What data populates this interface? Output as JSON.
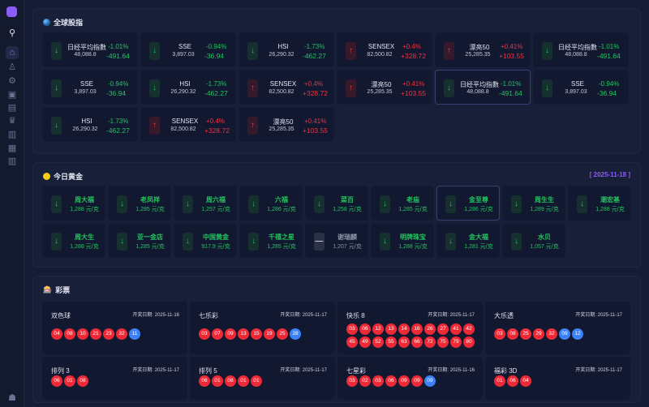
{
  "sidebar": {
    "items": [
      "logo",
      "search-icon",
      "home-icon",
      "user-icon",
      "gear-icon",
      "gift-icon",
      "building-icon",
      "crown-icon",
      "book-icon",
      "report-icon",
      "book-open-icon"
    ]
  },
  "indices": {
    "title": "全球股指",
    "items": [
      {
        "name": "日经平均指數",
        "value": "48,088.8",
        "pct": "-1.01%",
        "chg": "-491.64",
        "dir": "down"
      },
      {
        "name": "SSE",
        "value": "3,897.03",
        "pct": "-0.94%",
        "chg": "-36.94",
        "dir": "down"
      },
      {
        "name": "HSI",
        "value": "26,290.32",
        "pct": "-1.73%",
        "chg": "-462.27",
        "dir": "down"
      },
      {
        "name": "SENSEX",
        "value": "82,500.82",
        "pct": "+0.4%",
        "chg": "+328.72",
        "dir": "up"
      },
      {
        "name": "漂亮50",
        "value": "25,285.35",
        "pct": "+0.41%",
        "chg": "+103.55",
        "dir": "up"
      },
      {
        "name": "日经平均指數",
        "value": "48,088.8",
        "pct": "-1.01%",
        "chg": "-491.64",
        "dir": "down"
      },
      {
        "name": "SSE",
        "value": "3,897.03",
        "pct": "-0.94%",
        "chg": "-36.94",
        "dir": "down"
      },
      {
        "name": "HSI",
        "value": "26,290.32",
        "pct": "-1.73%",
        "chg": "-462.27",
        "dir": "down"
      },
      {
        "name": "SENSEX",
        "value": "82,500.82",
        "pct": "+0.4%",
        "chg": "+328.72",
        "dir": "up"
      },
      {
        "name": "漂亮50",
        "value": "25,285.35",
        "pct": "+0.41%",
        "chg": "+103.55",
        "dir": "up"
      },
      {
        "name": "日经平均指數",
        "value": "48,088.8",
        "pct": "-1.01%",
        "chg": "-491.64",
        "dir": "down"
      },
      {
        "name": "SSE",
        "value": "3,897.03",
        "pct": "-0.94%",
        "chg": "-36.94",
        "dir": "down"
      },
      {
        "name": "HSI",
        "value": "26,290.32",
        "pct": "-1.73%",
        "chg": "-462.27",
        "dir": "down"
      },
      {
        "name": "SENSEX",
        "value": "82,500.82",
        "pct": "+0.4%",
        "chg": "+328.72",
        "dir": "up"
      },
      {
        "name": "漂亮50",
        "value": "25,285.35",
        "pct": "+0.41%",
        "chg": "+103.55",
        "dir": "up"
      }
    ]
  },
  "gold": {
    "title": "今日黄金",
    "date": "[ 2025-11-18 ]",
    "items": [
      {
        "name": "周大福",
        "price": "1,288 元/克",
        "dir": "down"
      },
      {
        "name": "老凤祥",
        "price": "1,285 元/克",
        "dir": "down"
      },
      {
        "name": "周六福",
        "price": "1,257 元/克",
        "dir": "down"
      },
      {
        "name": "六福",
        "price": "1,286 元/克",
        "dir": "down"
      },
      {
        "name": "菜百",
        "price": "1,258 元/克",
        "dir": "down"
      },
      {
        "name": "老庙",
        "price": "1,285 元/克",
        "dir": "down"
      },
      {
        "name": "金至尊",
        "price": "1,286 元/克",
        "dir": "down"
      },
      {
        "name": "周生生",
        "price": "1,289 元/克",
        "dir": "down"
      },
      {
        "name": "潮宏基",
        "price": "1,288 元/克",
        "dir": "down"
      },
      {
        "name": "周大生",
        "price": "1,288 元/克",
        "dir": "down"
      },
      {
        "name": "亚一金店",
        "price": "1,285 元/克",
        "dir": "down"
      },
      {
        "name": "中国黄金",
        "price": "917.9 元/克",
        "dir": "down"
      },
      {
        "name": "千禧之星",
        "price": "1,285 元/克",
        "dir": "down"
      },
      {
        "name": "谢瑞麟",
        "price": "1,207 元/克",
        "dir": "flat"
      },
      {
        "name": "明牌珠宝",
        "price": "1,288 元/克",
        "dir": "down"
      },
      {
        "name": "金大福",
        "price": "1,281 元/克",
        "dir": "down"
      },
      {
        "name": "水贝",
        "price": "1,057 元/克",
        "dir": "down"
      }
    ]
  },
  "lottery": {
    "title": "彩票",
    "items": [
      {
        "name": "双色球",
        "date": "开奖日期: 2025-11-16",
        "red": [
          "04",
          "08",
          "10",
          "21",
          "23",
          "32"
        ],
        "blue": [
          "11"
        ]
      },
      {
        "name": "七乐彩",
        "date": "开奖日期: 2025-11-17",
        "red": [
          "03",
          "07",
          "09",
          "13",
          "15",
          "19",
          "25"
        ],
        "blue": [
          "28"
        ]
      },
      {
        "name": "快乐 8",
        "date": "开奖日期: 2025-11-17",
        "red": [
          "03",
          "06",
          "12",
          "13",
          "14",
          "16",
          "26",
          "27",
          "41",
          "42",
          "45",
          "49",
          "52",
          "55",
          "63",
          "66",
          "72",
          "75",
          "79",
          "80"
        ],
        "blue": []
      },
      {
        "name": "大乐透",
        "date": "开奖日期: 2025-11-17",
        "red": [
          "03",
          "08",
          "25",
          "29",
          "32"
        ],
        "blue": [
          "09",
          "12"
        ]
      },
      {
        "name": "排列 3",
        "date": "开奖日期: 2025-11-17",
        "red": [
          "06",
          "01",
          "08"
        ],
        "blue": []
      },
      {
        "name": "排列 5",
        "date": "开奖日期: 2025-11-17",
        "red": [
          "06",
          "01",
          "08",
          "01",
          "01"
        ],
        "blue": []
      },
      {
        "name": "七星彩",
        "date": "开奖日期: 2025-11-16",
        "red": [
          "03",
          "02",
          "03",
          "06",
          "09",
          "09"
        ],
        "blue": [
          "09"
        ]
      },
      {
        "name": "福彩 3D",
        "date": "开奖日期: 2025-11-17",
        "red": [
          "01",
          "06",
          "04"
        ],
        "blue": []
      }
    ]
  }
}
